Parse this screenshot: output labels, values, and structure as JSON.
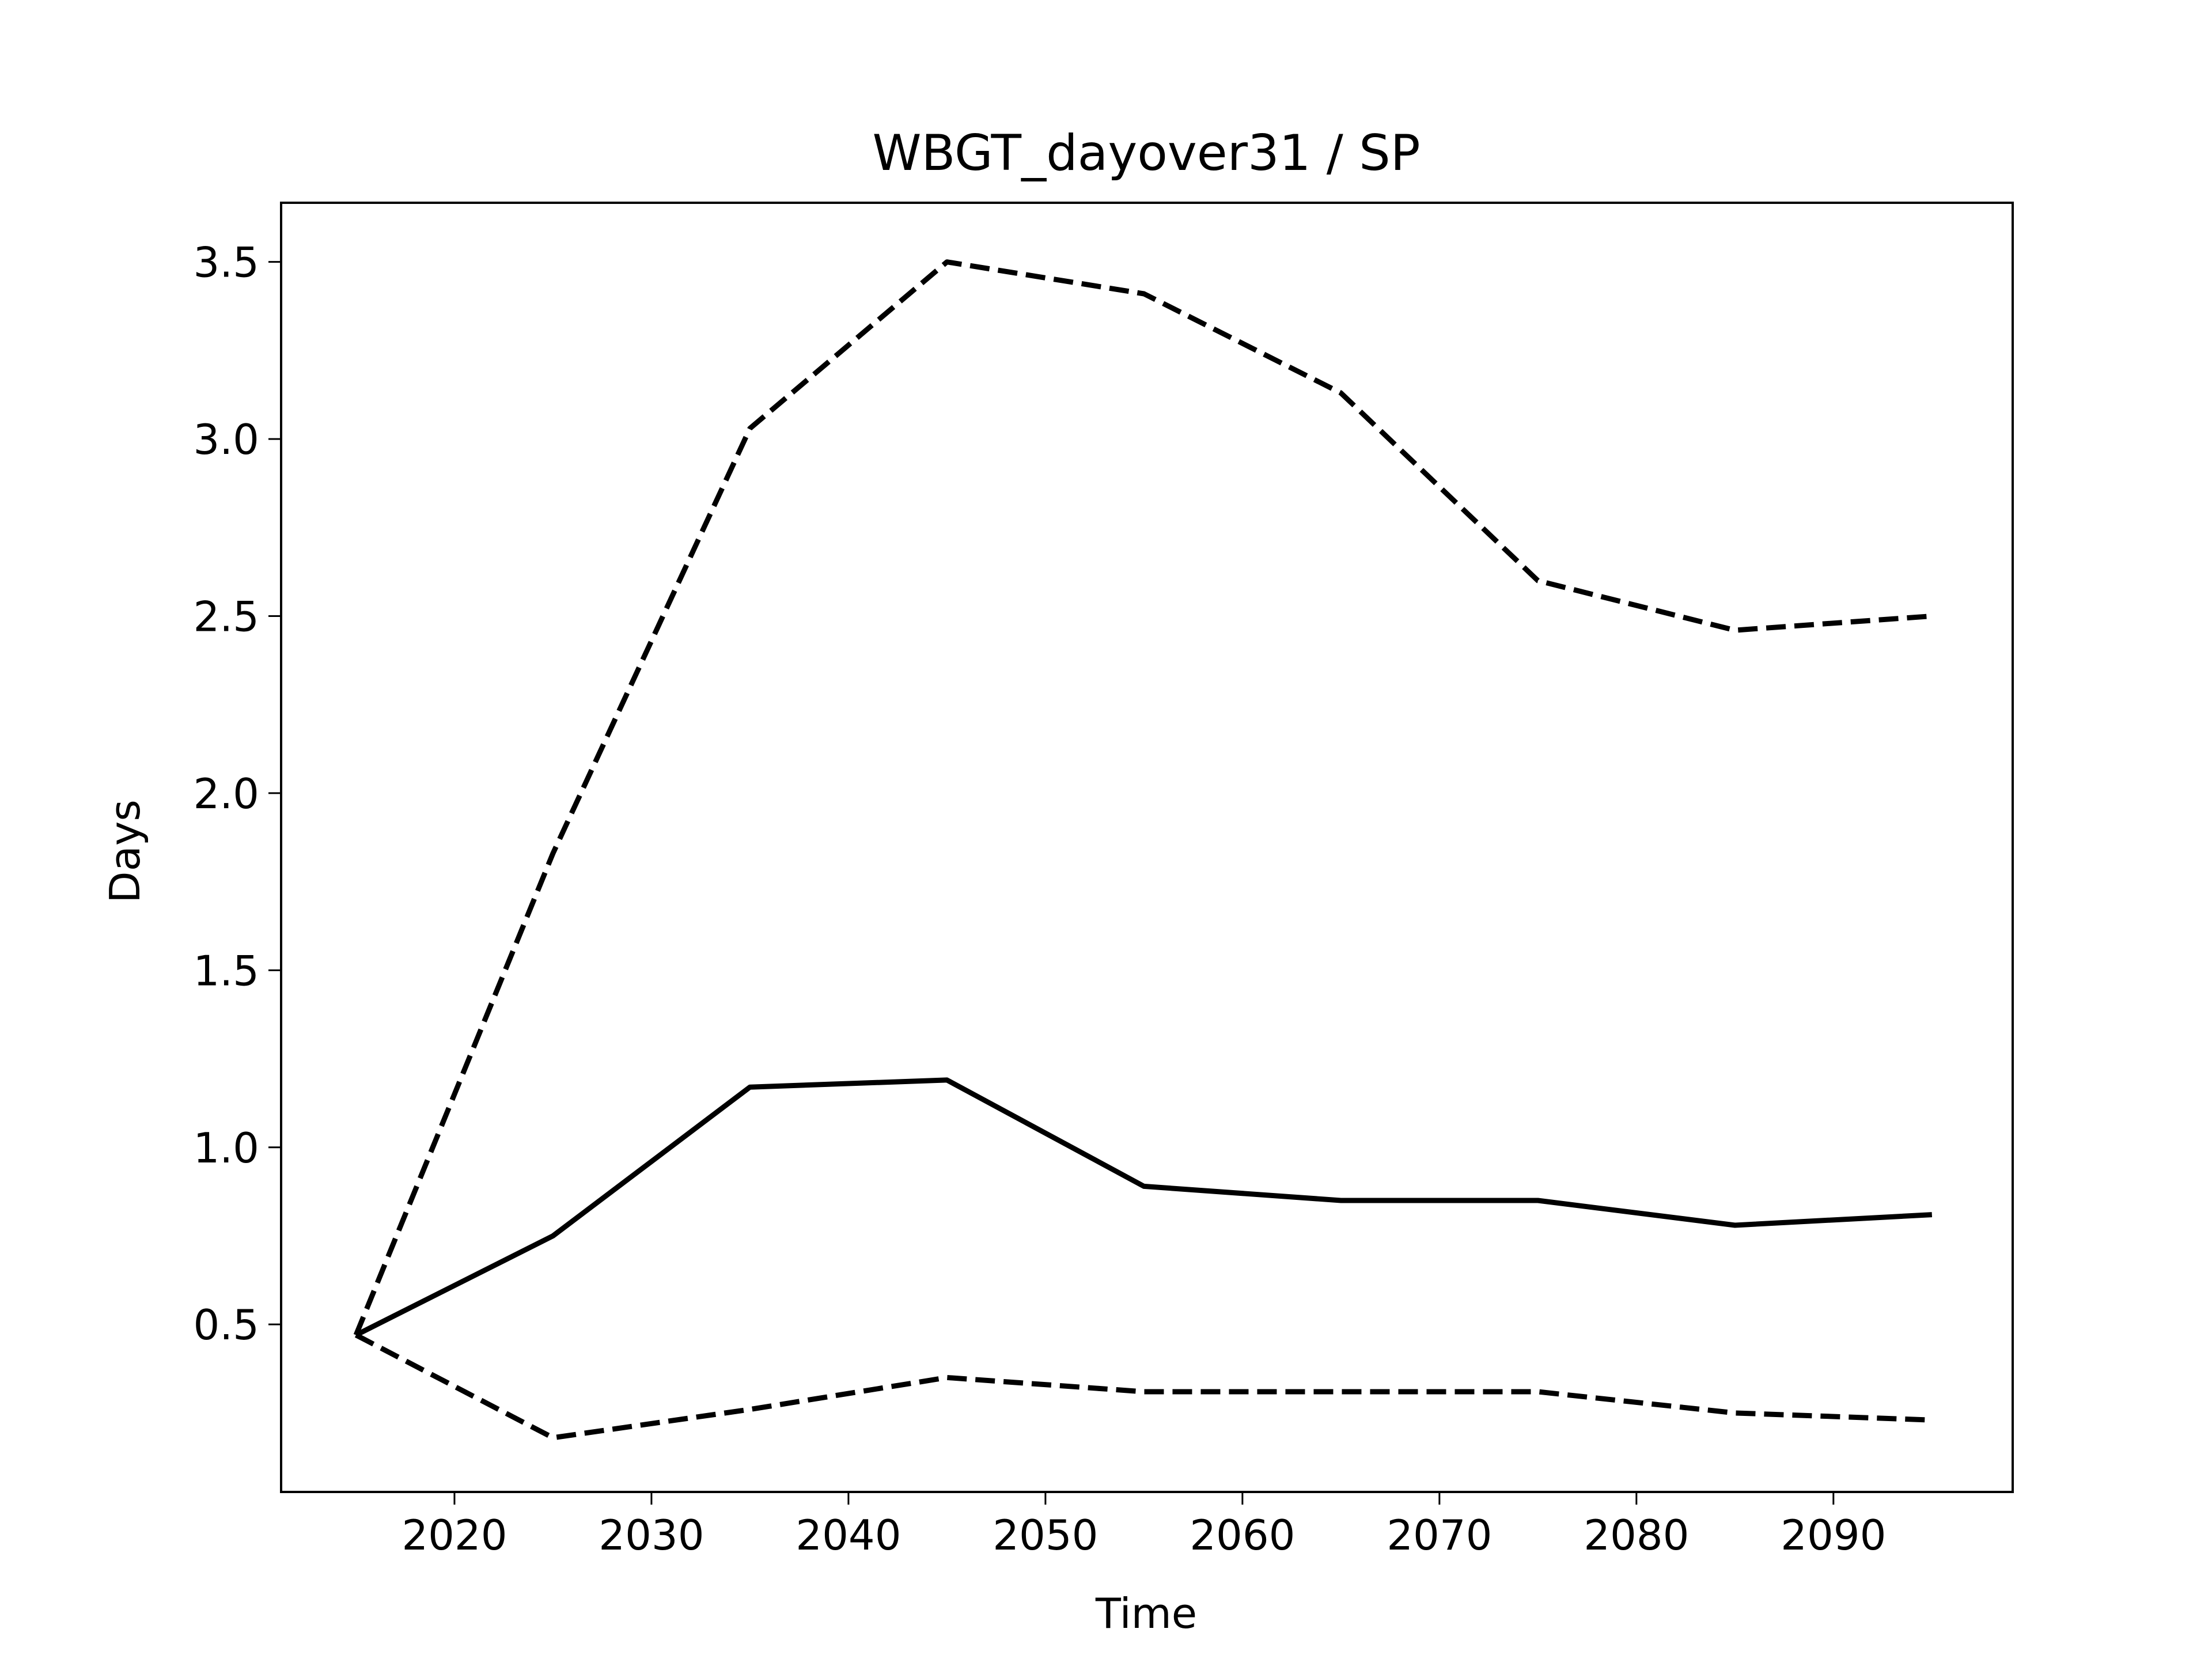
{
  "chart_data": {
    "type": "line",
    "title": "WBGT_dayover31 / SP",
    "xlabel": "Time",
    "ylabel": "Days",
    "xlim": [
      2011.2,
      2099.1
    ],
    "ylim": [
      0.027,
      3.667
    ],
    "x_ticks": [
      2020,
      2030,
      2040,
      2050,
      2060,
      2070,
      2080,
      2090
    ],
    "x_tick_labels": [
      "2020",
      "2030",
      "2040",
      "2050",
      "2060",
      "2070",
      "2080",
      "2090"
    ],
    "y_ticks": [
      0.5,
      1.0,
      1.5,
      2.0,
      2.5,
      3.0,
      3.5
    ],
    "y_tick_labels": [
      "0.5",
      "1.0",
      "1.5",
      "2.0",
      "2.5",
      "3.0",
      "3.5"
    ],
    "grid": false,
    "legend": "none",
    "x": [
      2015,
      2025,
      2035,
      2045,
      2055,
      2065,
      2075,
      2085,
      2095
    ],
    "series": [
      {
        "style": "dashed",
        "color": "#000000",
        "values": [
          0.47,
          1.83,
          3.03,
          3.5,
          3.41,
          3.13,
          2.6,
          2.46,
          2.5
        ]
      },
      {
        "style": "solid",
        "color": "#000000",
        "values": [
          0.47,
          0.75,
          1.17,
          1.19,
          0.89,
          0.85,
          0.85,
          0.78,
          0.81
        ]
      },
      {
        "style": "dashed",
        "color": "#000000",
        "values": [
          0.47,
          0.18,
          0.26,
          0.35,
          0.31,
          0.31,
          0.31,
          0.25,
          0.23
        ]
      }
    ]
  }
}
